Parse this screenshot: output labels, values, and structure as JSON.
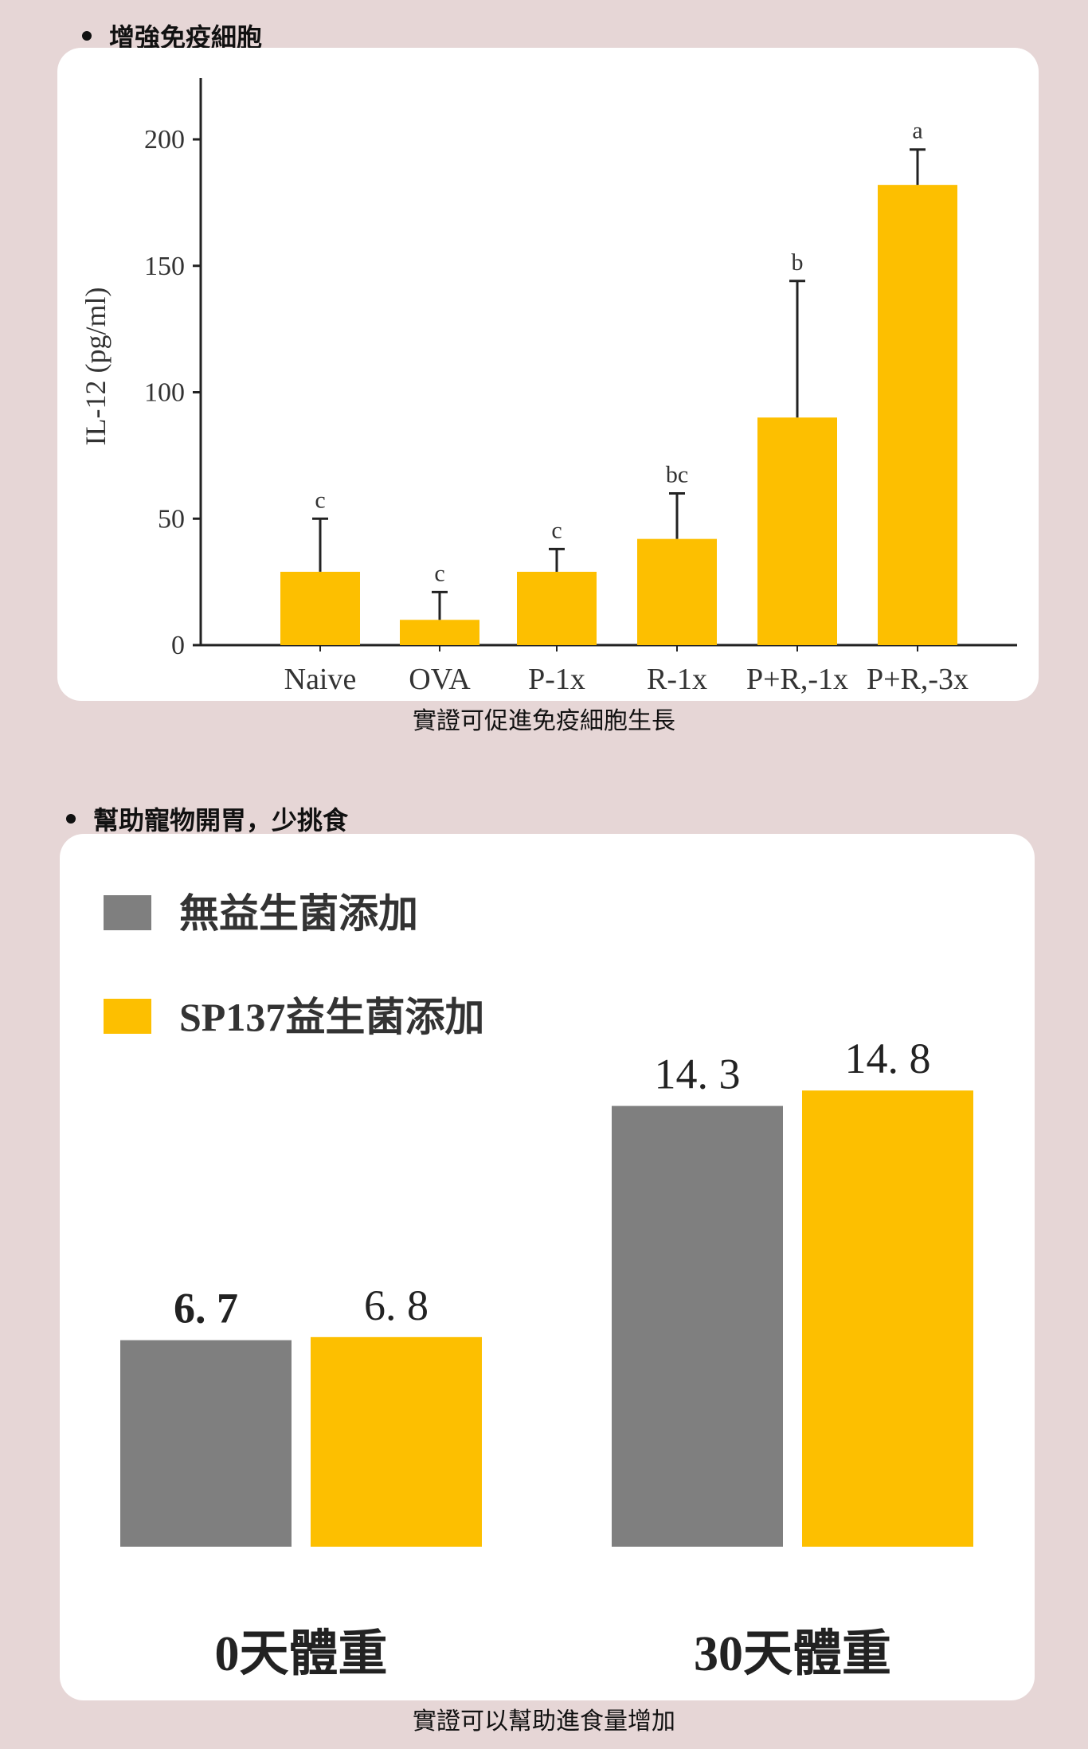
{
  "section1": {
    "heading": "增強免疫細胞",
    "caption": "實證可促進免疫細胞生長"
  },
  "section2": {
    "heading": "幫助寵物開胃，少挑食",
    "caption": "實證可以幫助進食量增加"
  },
  "colors": {
    "bar_gold": "#fdbf00",
    "bar_gray": "#7f7f7f",
    "page_bg": "#e6d6d6"
  },
  "chart_data": [
    {
      "type": "bar",
      "ylabel": "IL-12 (pg/ml)",
      "ylim": [
        0,
        225
      ],
      "yticks": [
        0,
        50,
        100,
        150,
        200
      ],
      "categories": [
        "Naive",
        "OVA",
        "P-1x",
        "R-1x",
        "P+R,-1x",
        "P+R,-3x"
      ],
      "values": [
        29,
        10,
        29,
        42,
        90,
        182
      ],
      "error_upper": [
        50,
        21,
        38,
        60,
        144,
        196
      ],
      "significance_letters": [
        "c",
        "c",
        "c",
        "bc",
        "b",
        "a"
      ]
    },
    {
      "type": "bar",
      "categories": [
        "0天體重",
        "30天體重"
      ],
      "series": [
        {
          "name": "無益生菌添加",
          "values": [
            6.7,
            14.3
          ],
          "labels": [
            "6. 7",
            "14. 3"
          ]
        },
        {
          "name": "SP137益生菌添加",
          "values": [
            6.8,
            14.8
          ],
          "labels": [
            "6. 8",
            "14. 8"
          ]
        }
      ]
    }
  ]
}
